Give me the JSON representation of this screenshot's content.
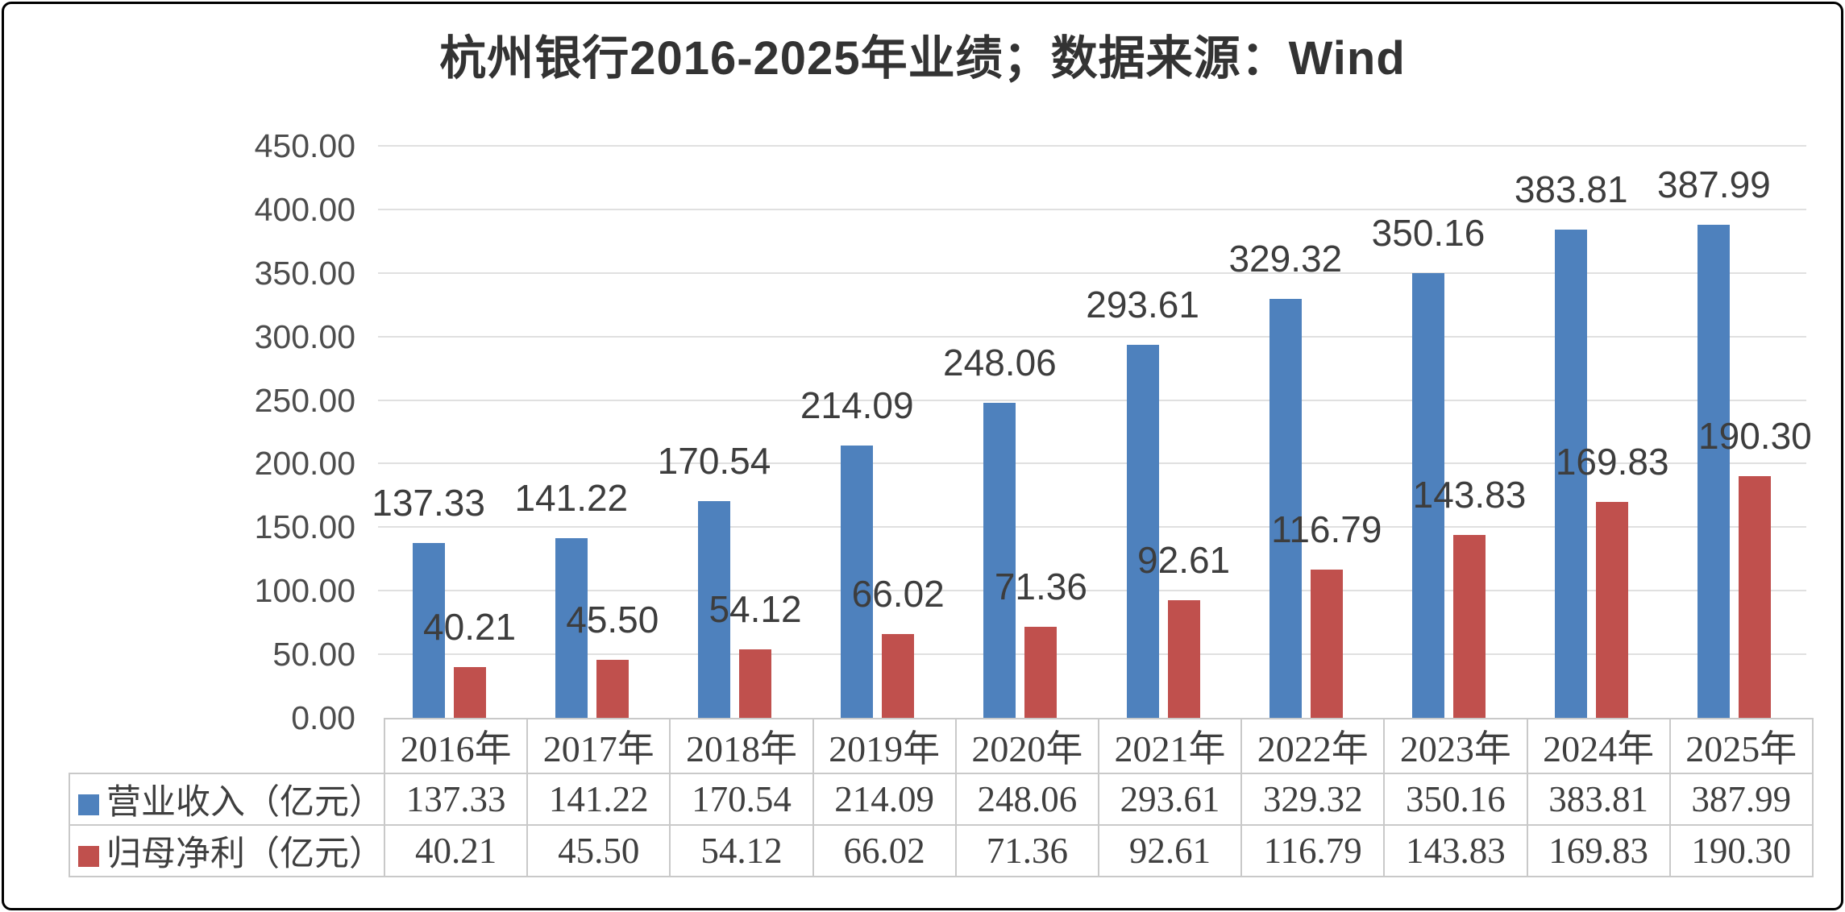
{
  "title": "杭州银行2016-2025年业绩；数据来源：Wind",
  "colors": {
    "revenue_bar": "#4E81BD",
    "profit_bar": "#C0504D",
    "gridline": "#E0E0E0",
    "axis_text": "#4D4D4D",
    "bar_label_text": "#3D3D3D",
    "table_border": "#C9C9C9",
    "table_text": "#3F3F3F",
    "title_text": "#333333",
    "background": "#FFFFFF",
    "frame_border": "#000000"
  },
  "chart_data": {
    "type": "bar",
    "title": "杭州银行2016-2025年业绩；数据来源：Wind",
    "categories": [
      "2016年",
      "2017年",
      "2018年",
      "2019年",
      "2020年",
      "2021年",
      "2022年",
      "2023年",
      "2024年",
      "2025年"
    ],
    "series": [
      {
        "name": "营业收入（亿元）",
        "color": "#4E81BD",
        "values": [
          137.33,
          141.22,
          170.54,
          214.09,
          248.06,
          293.61,
          329.32,
          350.16,
          383.81,
          387.99
        ],
        "labels": [
          "137.33",
          "141.22",
          "170.54",
          "214.09",
          "248.06",
          "293.61",
          "329.32",
          "350.16",
          "383.81",
          "387.99"
        ]
      },
      {
        "name": "归母净利（亿元）",
        "color": "#C0504D",
        "values": [
          40.21,
          45.5,
          54.12,
          66.02,
          71.36,
          92.61,
          116.79,
          143.83,
          169.83,
          190.3
        ],
        "labels": [
          "40.21",
          "45.50",
          "54.12",
          "66.02",
          "71.36",
          "92.61",
          "116.79",
          "143.83",
          "169.83",
          "190.30"
        ]
      }
    ],
    "xlabel": "",
    "ylabel": "",
    "ylim": [
      0,
      450
    ],
    "ytick_step": 50,
    "ytick_labels": [
      "0.00",
      "50.00",
      "100.00",
      "150.00",
      "200.00",
      "250.00",
      "300.00",
      "350.00",
      "400.00",
      "450.00"
    ],
    "grid": true,
    "data_labels": true,
    "legend_position": "table-row-headers",
    "data_table_shown": true
  }
}
